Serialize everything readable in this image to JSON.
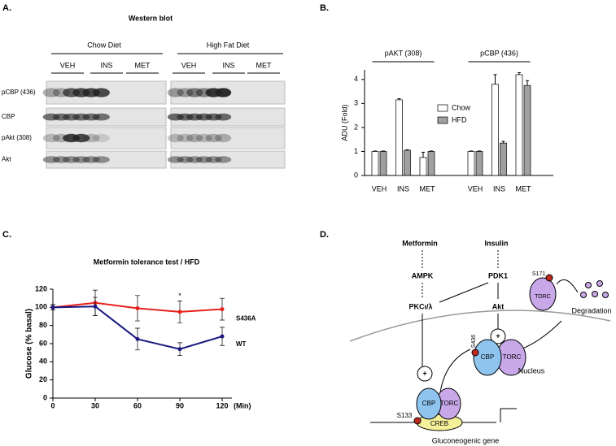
{
  "panels": {
    "a": "A.",
    "b": "B.",
    "c": "C.",
    "d": "D."
  },
  "western_blot": {
    "title": "Western blot",
    "groups": [
      "Chow Diet",
      "High Fat Diet"
    ],
    "treatments": [
      "VEH",
      "INS",
      "MET",
      "VEH",
      "INS",
      "MET"
    ],
    "rows": [
      "pCBP (436)",
      "CBP",
      "pAkt (308)",
      "Akt"
    ]
  },
  "chart_data": [
    {
      "type": "bar",
      "ylabel": "ADU (Fold)",
      "group_labels": [
        "pAKT (308)",
        "pCBP (436)"
      ],
      "categories": [
        "VEH",
        "INS",
        "MET",
        "VEH",
        "INS",
        "MET"
      ],
      "series": [
        {
          "name": "Chow",
          "color": "#ffffff",
          "values": [
            1.0,
            3.15,
            0.75,
            1.0,
            3.8,
            4.2
          ],
          "errors": [
            0.02,
            0.05,
            0.22,
            0.02,
            0.4,
            0.08
          ]
        },
        {
          "name": "HFD",
          "color": "#a0a0a0",
          "values": [
            1.0,
            1.05,
            1.0,
            1.0,
            1.35,
            3.75
          ],
          "errors": [
            0.02,
            0.02,
            0.02,
            0.02,
            0.07,
            0.2
          ]
        }
      ],
      "ylim": [
        0,
        4.4
      ],
      "yticks": [
        0,
        1,
        2,
        3,
        4
      ],
      "legend": "center"
    },
    {
      "type": "line",
      "title": "Metformin tolerance test / HFD",
      "ylabel": "Glucose (% basal)",
      "xlabel": "(Min)",
      "x": [
        0,
        30,
        60,
        90,
        120
      ],
      "series": [
        {
          "name": "S436A",
          "color": "#e8201c",
          "values": [
            100,
            105,
            99,
            95,
            98
          ],
          "errors": [
            3,
            14,
            14,
            12,
            12
          ]
        },
        {
          "name": "WT",
          "color": "#1a1a80",
          "values": [
            100,
            101,
            65,
            54,
            68
          ],
          "errors": [
            3,
            10,
            12,
            7,
            10
          ]
        }
      ],
      "xlim": [
        0,
        120
      ],
      "xticks": [
        0,
        30,
        60,
        90,
        120
      ],
      "ylim": [
        0,
        120
      ],
      "yticks": [
        0,
        20,
        40,
        60,
        80,
        100,
        120
      ],
      "annotations": [
        {
          "text": "*",
          "x": 90
        }
      ]
    }
  ],
  "diagram": {
    "metformin": "Metformin",
    "insulin": "Insulin",
    "ampk": "AMPK",
    "pdk1": "PDK1",
    "pkc": "PKCι/λ",
    "akt": "Akt",
    "s171": "S171",
    "torc_cytoplasm": "TORC",
    "degradation": "Degradation",
    "nucleus": "Nucleus",
    "s436": "S436",
    "cbp_nucleus": "CBP",
    "torc_nucleus": "TORC",
    "plus_akt": "+",
    "plus_pkc": "+",
    "cbp_promoter": "CBP",
    "torc_promoter": "TORC",
    "creb": "CREB",
    "s133": "S133",
    "gene": "Gluconeogenic gene"
  }
}
